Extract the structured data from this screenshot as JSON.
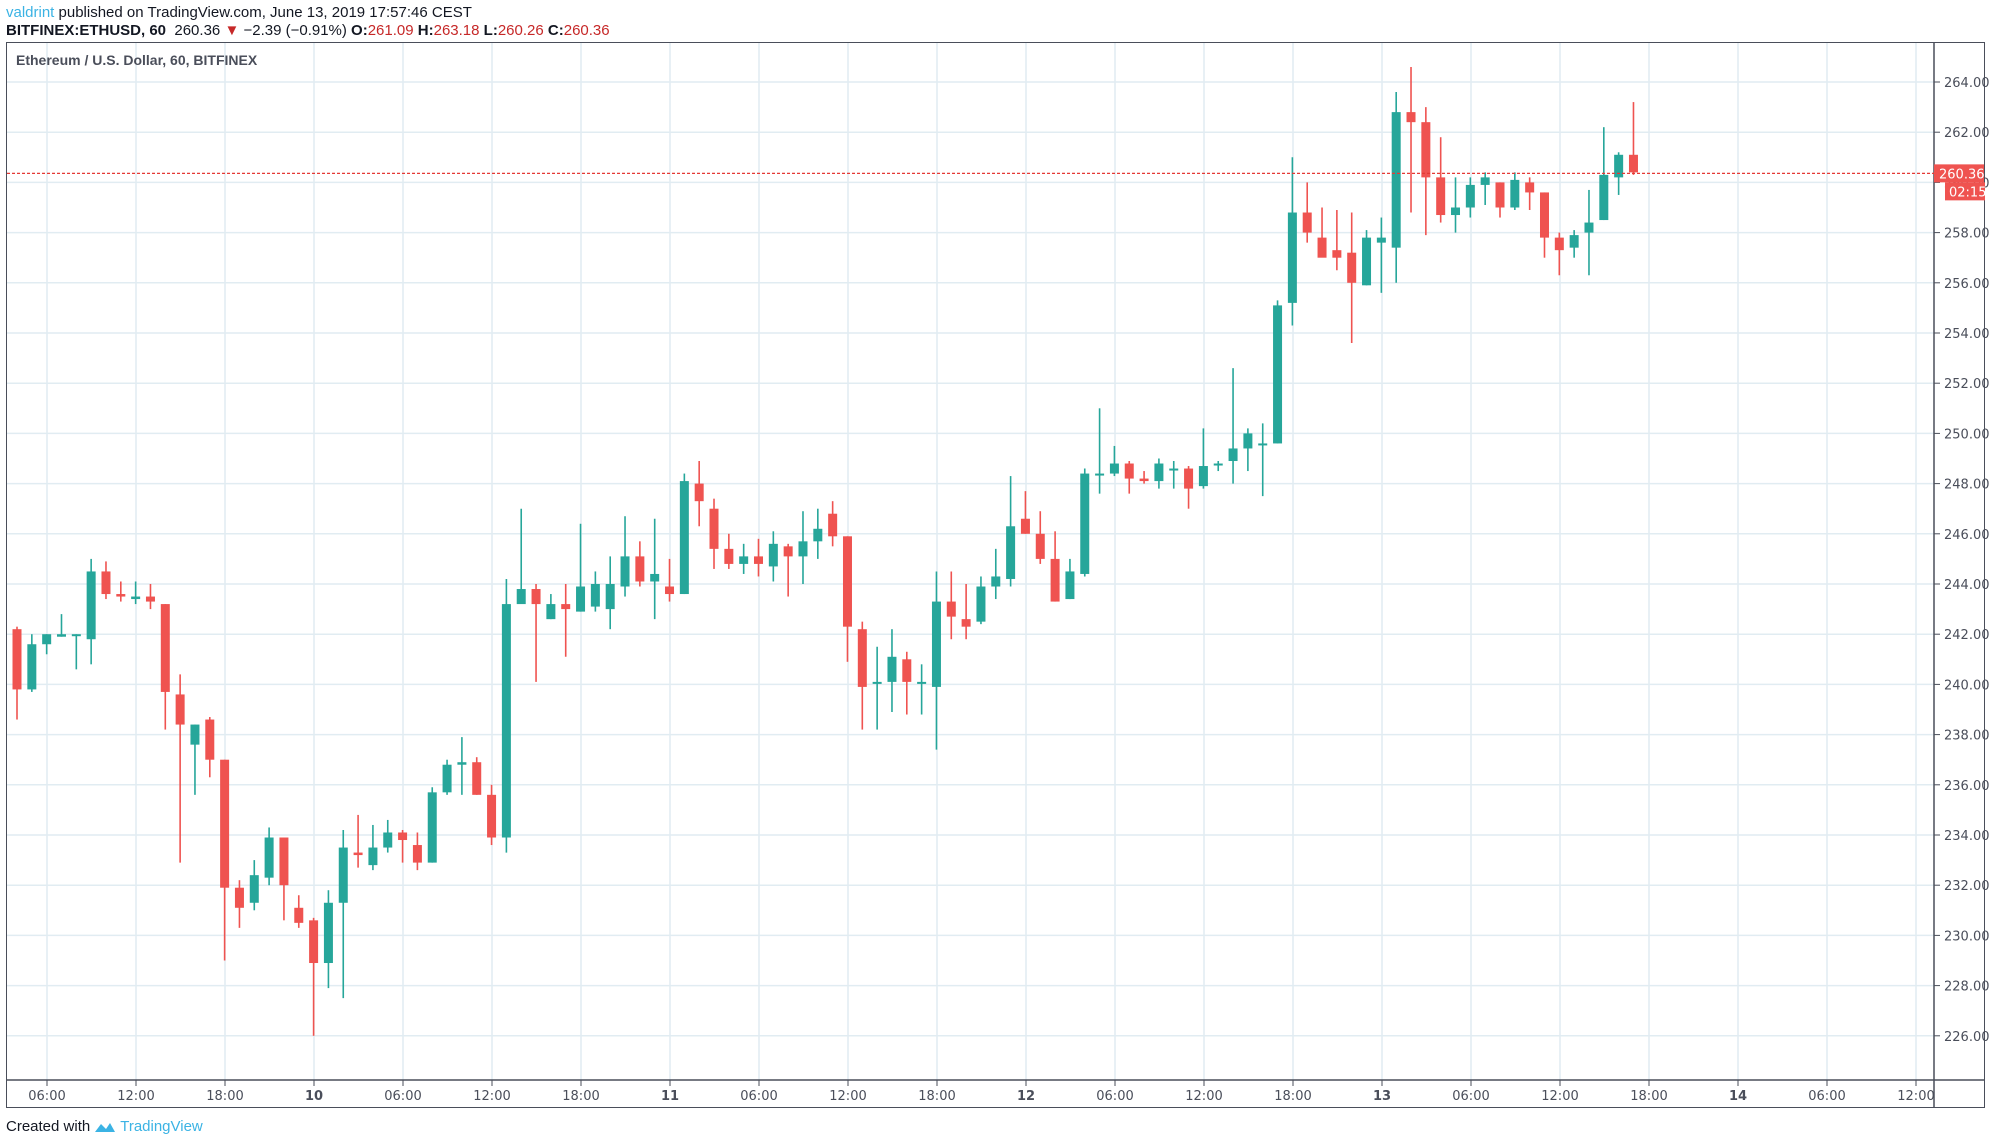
{
  "header": {
    "author": "valdrint",
    "published_text": " published on TradingView.com, June 13, 2019 17:57:46 CEST",
    "symbol": "BITFINEX:ETHUSD, 60",
    "last": "260.36",
    "change_arrow": "▼",
    "change": "−2.39 (−0.91%)",
    "o_label": "O:",
    "o": "261.09",
    "h_label": "H:",
    "h": "263.18",
    "l_label": "L:",
    "l": "260.26",
    "c_label": "C:",
    "c": "260.36"
  },
  "footer": {
    "created_with": "Created with",
    "brand": "TradingView"
  },
  "colors": {
    "up": "#26a69a",
    "down": "#ef5350",
    "grid": "#e1ecf2",
    "axis": "#4a4e5a",
    "price_line": "#e53935"
  },
  "chart_data": {
    "type": "candlestick",
    "title": "Ethereum / U.S. Dollar, 60, BITFINEX",
    "xlabel": "",
    "ylabel": "",
    "ylim": [
      224.5,
      265.6
    ],
    "y_ticks": [
      "226.00",
      "228.00",
      "230.00",
      "232.00",
      "234.00",
      "236.00",
      "238.00",
      "240.00",
      "242.00",
      "244.00",
      "246.00",
      "248.00",
      "250.00",
      "252.00",
      "254.00",
      "256.00",
      "258.00",
      "260.00",
      "262.00",
      "264.00"
    ],
    "x_ticks": [
      "06:00",
      "12:00",
      "18:00",
      "10",
      "06:00",
      "12:00",
      "18:00",
      "11",
      "06:00",
      "12:00",
      "18:00",
      "12",
      "06:00",
      "12:00",
      "18:00",
      "13",
      "06:00",
      "12:00",
      "18:00",
      "14",
      "06:00",
      "12:00"
    ],
    "grid": true,
    "current_price": 260.36,
    "current_price_label": "260.36",
    "countdown_label": "02:15",
    "candles": [
      [
        242.2,
        242.3,
        238.6,
        239.8
      ],
      [
        239.8,
        242.0,
        239.7,
        241.6
      ],
      [
        241.6,
        242.0,
        241.2,
        242.0
      ],
      [
        241.9,
        242.8,
        241.9,
        242.0
      ],
      [
        242.0,
        242.0,
        240.6,
        242.0
      ],
      [
        241.8,
        245.0,
        240.8,
        244.5
      ],
      [
        244.5,
        244.9,
        243.4,
        243.6
      ],
      [
        243.6,
        244.1,
        243.3,
        243.5
      ],
      [
        243.4,
        244.1,
        243.2,
        243.5
      ],
      [
        243.5,
        244.0,
        243.0,
        243.3
      ],
      [
        243.2,
        243.2,
        238.2,
        239.7
      ],
      [
        239.6,
        240.4,
        232.9,
        238.4
      ],
      [
        237.6,
        238.4,
        235.6,
        238.4
      ],
      [
        238.6,
        238.7,
        236.3,
        237.0
      ],
      [
        237.0,
        237.0,
        229.0,
        231.9
      ],
      [
        231.9,
        232.2,
        230.3,
        231.1
      ],
      [
        231.3,
        233.0,
        231.0,
        232.4
      ],
      [
        232.3,
        234.3,
        232.0,
        233.9
      ],
      [
        233.9,
        233.9,
        230.6,
        232.0
      ],
      [
        231.1,
        231.6,
        230.3,
        230.5
      ],
      [
        230.6,
        230.7,
        226.0,
        228.9
      ],
      [
        228.9,
        231.8,
        227.9,
        231.3
      ],
      [
        231.3,
        234.2,
        227.5,
        233.5
      ],
      [
        233.3,
        234.8,
        232.7,
        233.2
      ],
      [
        232.8,
        234.4,
        232.6,
        233.5
      ],
      [
        233.5,
        234.6,
        233.3,
        234.1
      ],
      [
        234.1,
        234.2,
        232.9,
        233.8
      ],
      [
        233.6,
        234.1,
        232.6,
        232.9
      ],
      [
        232.9,
        235.9,
        232.9,
        235.7
      ],
      [
        235.7,
        237.0,
        235.6,
        236.8
      ],
      [
        236.8,
        237.9,
        235.6,
        236.9
      ],
      [
        236.9,
        237.1,
        235.6,
        235.6
      ],
      [
        235.6,
        236.0,
        233.6,
        233.9
      ],
      [
        233.9,
        244.2,
        233.3,
        243.2
      ],
      [
        243.2,
        247.0,
        243.6,
        243.8
      ],
      [
        243.8,
        244.0,
        240.1,
        243.2
      ],
      [
        242.6,
        243.6,
        242.6,
        243.2
      ],
      [
        243.2,
        244.0,
        241.1,
        243.0
      ],
      [
        242.9,
        246.4,
        242.9,
        243.9
      ],
      [
        243.1,
        244.5,
        242.9,
        244.0
      ],
      [
        243.0,
        245.1,
        242.2,
        244.0
      ],
      [
        243.9,
        246.7,
        243.5,
        245.1
      ],
      [
        245.1,
        245.7,
        243.9,
        244.1
      ],
      [
        244.1,
        246.6,
        242.6,
        244.4
      ],
      [
        243.9,
        245.0,
        243.3,
        243.6
      ],
      [
        243.6,
        248.4,
        243.6,
        248.1
      ],
      [
        248.0,
        248.9,
        246.3,
        247.3
      ],
      [
        247.0,
        247.4,
        244.6,
        245.4
      ],
      [
        245.4,
        246.0,
        244.6,
        244.8
      ],
      [
        244.8,
        245.6,
        244.4,
        245.1
      ],
      [
        245.1,
        245.8,
        244.3,
        244.8
      ],
      [
        244.7,
        246.1,
        244.1,
        245.6
      ],
      [
        245.5,
        245.6,
        243.5,
        245.1
      ],
      [
        245.1,
        246.9,
        244.0,
        245.7
      ],
      [
        245.7,
        247.0,
        245.0,
        246.2
      ],
      [
        246.8,
        247.3,
        245.5,
        245.9
      ],
      [
        245.9,
        245.9,
        240.9,
        242.3
      ],
      [
        242.2,
        242.5,
        238.2,
        239.9
      ],
      [
        240.1,
        241.5,
        238.2,
        240.1
      ],
      [
        240.1,
        242.2,
        238.9,
        241.1
      ],
      [
        241.0,
        241.3,
        238.8,
        240.1
      ],
      [
        240.1,
        240.8,
        238.8,
        240.1
      ],
      [
        239.9,
        244.5,
        237.4,
        243.3
      ],
      [
        243.3,
        244.5,
        241.8,
        242.7
      ],
      [
        242.6,
        244.0,
        241.8,
        242.3
      ],
      [
        242.5,
        244.3,
        242.4,
        243.9
      ],
      [
        243.9,
        245.4,
        243.4,
        244.3
      ],
      [
        244.2,
        248.3,
        243.9,
        246.3
      ],
      [
        246.6,
        247.7,
        246.0,
        246.0
      ],
      [
        246.0,
        246.9,
        244.8,
        245.0
      ],
      [
        245.0,
        246.1,
        243.3,
        243.3
      ],
      [
        243.4,
        245.0,
        243.4,
        244.5
      ],
      [
        244.4,
        248.6,
        244.3,
        248.4
      ],
      [
        248.4,
        251.0,
        247.6,
        248.4
      ],
      [
        248.4,
        249.5,
        248.3,
        248.8
      ],
      [
        248.8,
        248.9,
        247.6,
        248.2
      ],
      [
        248.2,
        248.5,
        248.0,
        248.1
      ],
      [
        248.1,
        249.0,
        247.8,
        248.8
      ],
      [
        248.6,
        248.9,
        247.8,
        248.6
      ],
      [
        248.6,
        248.7,
        247.0,
        247.8
      ],
      [
        247.9,
        250.2,
        247.8,
        248.7
      ],
      [
        248.8,
        248.9,
        248.5,
        248.8
      ],
      [
        248.9,
        252.6,
        248.0,
        249.4
      ],
      [
        249.4,
        250.2,
        248.5,
        250.0
      ],
      [
        249.6,
        250.4,
        247.5,
        249.6
      ],
      [
        249.6,
        255.3,
        249.6,
        255.1
      ],
      [
        255.2,
        261.0,
        254.3,
        258.8
      ],
      [
        258.8,
        260.0,
        257.6,
        258.0
      ],
      [
        257.8,
        259.0,
        257.2,
        257.0
      ],
      [
        257.3,
        258.9,
        256.5,
        257.0
      ],
      [
        257.2,
        258.8,
        253.6,
        256.0
      ],
      [
        255.9,
        258.1,
        255.9,
        257.8
      ],
      [
        257.6,
        258.6,
        255.6,
        257.8
      ],
      [
        257.4,
        263.6,
        256.0,
        262.8
      ],
      [
        262.8,
        264.6,
        258.8,
        262.4
      ],
      [
        262.4,
        263.0,
        257.9,
        260.2
      ],
      [
        260.2,
        261.8,
        258.4,
        258.7
      ],
      [
        258.7,
        260.2,
        258.0,
        259.0
      ],
      [
        259.0,
        260.2,
        258.6,
        259.9
      ],
      [
        259.9,
        260.4,
        259.1,
        260.2
      ],
      [
        260.0,
        260.0,
        258.6,
        259.0
      ],
      [
        259.0,
        260.4,
        258.9,
        260.1
      ],
      [
        260.0,
        260.2,
        258.9,
        259.6
      ],
      [
        259.6,
        259.6,
        257.0,
        257.8
      ],
      [
        257.8,
        258.0,
        256.3,
        257.3
      ],
      [
        257.4,
        258.1,
        257.0,
        257.9
      ],
      [
        258.0,
        259.7,
        256.3,
        258.4
      ],
      [
        258.5,
        262.2,
        258.5,
        260.3
      ],
      [
        260.2,
        261.2,
        259.5,
        261.1
      ],
      [
        261.1,
        263.2,
        260.3,
        260.4
      ]
    ]
  }
}
